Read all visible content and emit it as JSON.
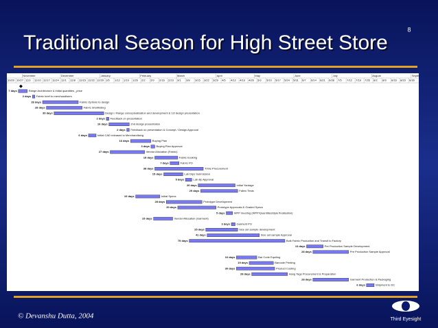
{
  "title": "Traditional Season for High Street Store",
  "page_number": "8",
  "footer": "© Devanshu Dutta, 2004",
  "logo_text": "Third Eyesight",
  "chart_data": {
    "type": "gantt",
    "color": "#7878f0",
    "xlim": [
      0,
      323
    ],
    "milestone": 11,
    "months": [
      {
        "value": 12,
        "label": "November"
      },
      {
        "value": 42,
        "label": "December"
      },
      {
        "value": 73,
        "label": "January"
      },
      {
        "value": 104,
        "label": "February"
      },
      {
        "value": 133,
        "label": "March"
      },
      {
        "value": 164,
        "label": "April"
      },
      {
        "value": 194,
        "label": "May"
      },
      {
        "value": 225,
        "label": "June"
      },
      {
        "value": 255,
        "label": "July"
      },
      {
        "value": 286,
        "label": "August"
      },
      {
        "value": 317,
        "label": "Septe"
      }
    ],
    "xticks": [
      {
        "value": 0,
        "label": "10/20"
      },
      {
        "value": 7,
        "label": "10/27"
      },
      {
        "value": 14,
        "label": "11/3"
      },
      {
        "value": 21,
        "label": "11/10"
      },
      {
        "value": 28,
        "label": "11/17"
      },
      {
        "value": 35,
        "label": "11/24"
      },
      {
        "value": 42,
        "label": "12/1"
      },
      {
        "value": 49,
        "label": "12/8"
      },
      {
        "value": 56,
        "label": "12/15"
      },
      {
        "value": 63,
        "label": "12/22"
      },
      {
        "value": 70,
        "label": "12/29"
      },
      {
        "value": 77,
        "label": "1/5"
      },
      {
        "value": 84,
        "label": "1/12"
      },
      {
        "value": 91,
        "label": "1/19"
      },
      {
        "value": 98,
        "label": "1/26"
      },
      {
        "value": 105,
        "label": "2/2"
      },
      {
        "value": 112,
        "label": "2/9"
      },
      {
        "value": 119,
        "label": "2/16"
      },
      {
        "value": 126,
        "label": "2/23"
      },
      {
        "value": 133,
        "label": "3/1"
      },
      {
        "value": 140,
        "label": "3/8"
      },
      {
        "value": 147,
        "label": "3/15"
      },
      {
        "value": 154,
        "label": "3/22"
      },
      {
        "value": 161,
        "label": "3/29"
      },
      {
        "value": 168,
        "label": "4/5"
      },
      {
        "value": 175,
        "label": "4/12"
      },
      {
        "value": 182,
        "label": "4/19"
      },
      {
        "value": 189,
        "label": "4/26"
      },
      {
        "value": 196,
        "label": "5/3"
      },
      {
        "value": 203,
        "label": "5/10"
      },
      {
        "value": 210,
        "label": "5/17"
      },
      {
        "value": 217,
        "label": "5/24"
      },
      {
        "value": 224,
        "label": "5/31"
      },
      {
        "value": 231,
        "label": "6/7"
      },
      {
        "value": 238,
        "label": "6/14"
      },
      {
        "value": 245,
        "label": "6/21"
      },
      {
        "value": 252,
        "label": "6/28"
      },
      {
        "value": 259,
        "label": "7/5"
      },
      {
        "value": 266,
        "label": "7/12"
      },
      {
        "value": 273,
        "label": "7/19"
      },
      {
        "value": 280,
        "label": "7/26"
      },
      {
        "value": 287,
        "label": "8/2"
      },
      {
        "value": 294,
        "label": "8/9"
      },
      {
        "value": 301,
        "label": "8/16"
      },
      {
        "value": 308,
        "label": "8/23"
      },
      {
        "value": 315,
        "label": "8/30"
      }
    ],
    "tasks": [
      {
        "name": "Range Architecture & initial quantities _price",
        "start": 9,
        "duration": 7,
        "duration_label": "7 days"
      },
      {
        "name": "Fabric brief to merchandisers",
        "start": 20,
        "duration": 2,
        "duration_label": "2 days"
      },
      {
        "name": "Fabric Options to design",
        "start": 28,
        "duration": 28,
        "duration_label": "28 days"
      },
      {
        "name": "Fabric Shortlisting",
        "start": 31,
        "duration": 28,
        "duration_label": "28 days"
      },
      {
        "name": "Design / Range conceptualisation and development & 1st design presentation",
        "start": 37,
        "duration": 39,
        "duration_label": "39 days"
      },
      {
        "name": "Feedback on presentation",
        "start": 78,
        "duration": 2,
        "duration_label": "2 days"
      },
      {
        "name": "2nd design presentation",
        "start": 80,
        "duration": 16,
        "duration_label": "16 days"
      },
      {
        "name": "Feedback on presentation & Concept / Design Approval",
        "start": 94,
        "duration": 2,
        "duration_label": "2 days"
      },
      {
        "name": "Initial CAD released to Merchandising",
        "start": 64,
        "duration": 6,
        "duration_label": "6 days"
      },
      {
        "name": "Buying Plan",
        "start": 97,
        "duration": 16,
        "duration_label": "16 days"
      },
      {
        "name": "Buying Plan Approval",
        "start": 113,
        "duration": 3,
        "duration_label": "3 days"
      },
      {
        "name": "Vendor Allocation (Fabric)",
        "start": 81,
        "duration": 27,
        "duration_label": "27 days"
      },
      {
        "name": "Fabric booking",
        "start": 116,
        "duration": 18,
        "duration_label": "18 days"
      },
      {
        "name": "Fabric PO",
        "start": 128,
        "duration": 7,
        "duration_label": "7 days"
      },
      {
        "name": "Trims Procurement",
        "start": 116,
        "duration": 38,
        "duration_label": "38 days"
      },
      {
        "name": "Lab Dips Submission",
        "start": 123,
        "duration": 15,
        "duration_label": "15 days"
      },
      {
        "name": "Lab dip Approval",
        "start": 140,
        "duration": 5,
        "duration_label": "5 days"
      },
      {
        "name": "Initial Yardage",
        "start": 150,
        "duration": 29,
        "duration_label": "29 days"
      },
      {
        "name": "Fabric Tests",
        "start": 152,
        "duration": 29,
        "duration_label": "29 days"
      },
      {
        "name": "Initial Specs",
        "start": 101,
        "duration": 19,
        "duration_label": "19 days"
      },
      {
        "name": "Prototype Development",
        "start": 125,
        "duration": 28,
        "duration_label": "28 days"
      },
      {
        "name": "Prototype Approvals & Graded Specs",
        "start": 134,
        "duration": 30,
        "duration_label": "30 days"
      },
      {
        "name": "WPP meeting (WPP/Quantities/style finalisation)",
        "start": 172,
        "duration": 5,
        "duration_label": "5 days"
      },
      {
        "name": "Vendor Allocation (Garment)",
        "start": 115,
        "duration": 15,
        "duration_label": "15 days"
      },
      {
        "name": "Garment PO",
        "start": 176,
        "duration": 3,
        "duration_label": "3 days"
      },
      {
        "name": "Size set sample development",
        "start": 156,
        "duration": 25,
        "duration_label": "25 days"
      },
      {
        "name": "Size set sample Approval",
        "start": 157,
        "duration": 41,
        "duration_label": "41 days"
      },
      {
        "name": "Bulk Fabric Production and Transit to Factory",
        "start": 143,
        "duration": 75,
        "duration_label": "75 days"
      },
      {
        "name": "Pre Production Sample Development",
        "start": 235,
        "duration": 13,
        "duration_label": "13 days"
      },
      {
        "name": "Pre Production Sample Approval",
        "start": 240,
        "duration": 28,
        "duration_label": "28 days"
      },
      {
        "name": "Bar Code Equiling",
        "start": 180,
        "duration": 16,
        "duration_label": "16 days"
      },
      {
        "name": "Barcode Printing",
        "start": 190,
        "duration": 19,
        "duration_label": "19 days"
      },
      {
        "name": "Product Costing",
        "start": 180,
        "duration": 30,
        "duration_label": "30 days"
      },
      {
        "name": "Hang Tags Procurement & Preparation",
        "start": 192,
        "duration": 28,
        "duration_label": "28 days"
      },
      {
        "name": "Garment Production & Packaging",
        "start": 240,
        "duration": 28,
        "duration_label": "28 days"
      },
      {
        "name": "Shipment to DC",
        "start": 282,
        "duration": 6,
        "duration_label": "6 days"
      }
    ]
  }
}
